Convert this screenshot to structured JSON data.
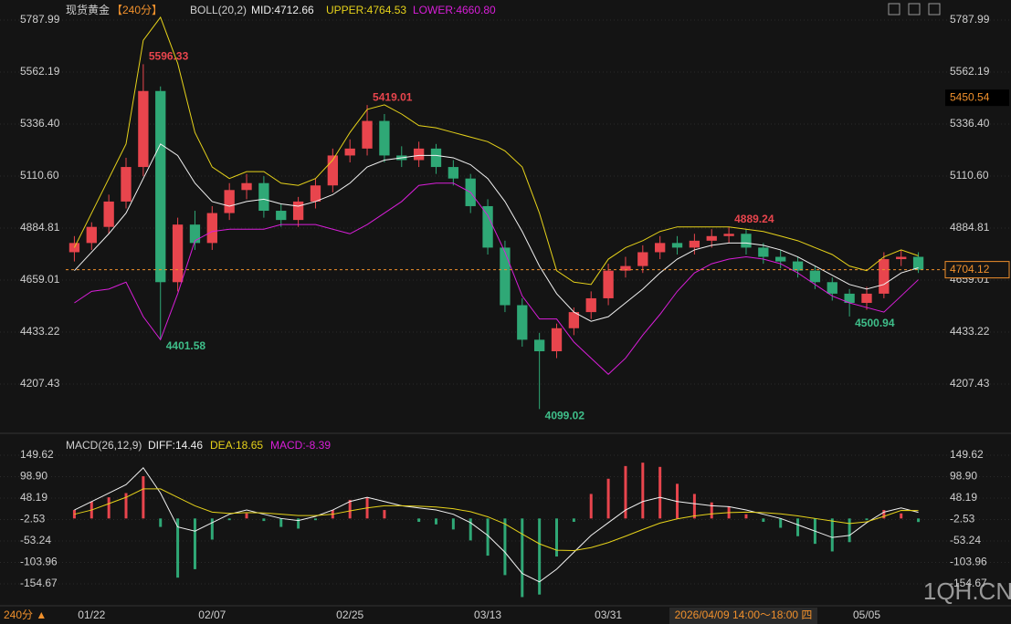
{
  "chart_data": [
    {
      "type": "candlestick",
      "title": "现货黄金",
      "period": "【240分】",
      "indicator": "BOLL(20,2)",
      "mid_label": "MID:4712.66",
      "upper_label": "UPPER:4764.53",
      "lower_label": "LOWER:4660.80",
      "categories": [
        null,
        "01/22",
        null,
        null,
        null,
        null,
        null,
        null,
        "02/07",
        null,
        null,
        null,
        null,
        null,
        null,
        null,
        "02/25",
        null,
        null,
        null,
        null,
        null,
        null,
        null,
        "03/13",
        null,
        null,
        null,
        null,
        null,
        null,
        "03/31",
        null,
        null,
        null,
        null,
        null,
        null,
        null,
        null,
        null,
        null,
        null,
        null,
        null,
        null,
        "05/05",
        null,
        null,
        null
      ],
      "open": [
        4780,
        4820,
        4890,
        5000,
        5150,
        5480,
        4650,
        4900,
        4820,
        4950,
        5050,
        5080,
        4960,
        4920,
        5000,
        5070,
        5200,
        5230,
        5350,
        5200,
        5180,
        5230,
        5150,
        5100,
        4980,
        4800,
        4550,
        4400,
        4350,
        4450,
        4520,
        4580,
        4700,
        4720,
        4780,
        4820,
        4800,
        4830,
        4850,
        4860,
        4800,
        4760,
        4740,
        4700,
        4650,
        4600,
        4560,
        4600,
        4750,
        4760
      ],
      "high": [
        4850,
        4910,
        5030,
        5190,
        5596.33,
        5500,
        4930,
        4960,
        4980,
        5080,
        5120,
        5110,
        4990,
        5020,
        5100,
        5230,
        5270,
        5419.01,
        5380,
        5240,
        5260,
        5250,
        5180,
        5120,
        5010,
        4830,
        4580,
        4430,
        4470,
        4540,
        4610,
        4730,
        4760,
        4810,
        4850,
        4850,
        4860,
        4880,
        4889.24,
        4880,
        4820,
        4790,
        4760,
        4720,
        4670,
        4620,
        4630,
        4780,
        4790,
        4780
      ],
      "low": [
        4740,
        4790,
        4860,
        4970,
        5110,
        4401.58,
        4610,
        4790,
        4790,
        4920,
        5010,
        4930,
        4890,
        4890,
        4970,
        5040,
        5170,
        5200,
        5170,
        5150,
        5150,
        5120,
        5070,
        4950,
        4770,
        4520,
        4370,
        4099.02,
        4320,
        4420,
        4490,
        4550,
        4670,
        4690,
        4750,
        4770,
        4770,
        4800,
        4820,
        4770,
        4730,
        4710,
        4670,
        4620,
        4570,
        4500.94,
        4530,
        4580,
        4720,
        4690
      ],
      "close": [
        4820,
        4890,
        5000,
        5150,
        5480,
        4650,
        4900,
        4820,
        4950,
        5050,
        5080,
        4960,
        4920,
        5000,
        5070,
        5200,
        5230,
        5350,
        5200,
        5180,
        5230,
        5150,
        5100,
        4980,
        4800,
        4550,
        4400,
        4350,
        4450,
        4520,
        4580,
        4700,
        4720,
        4780,
        4820,
        4800,
        4830,
        4850,
        4860,
        4800,
        4760,
        4740,
        4700,
        4650,
        4600,
        4560,
        4600,
        4750,
        4760,
        4704.12
      ],
      "series": [
        {
          "color": "#e6d21a",
          "values": [
            4800,
            4950,
            5100,
            5250,
            5700,
            5800,
            5600,
            5300,
            5150,
            5100,
            5130,
            5130,
            5080,
            5070,
            5100,
            5180,
            5300,
            5400,
            5420,
            5380,
            5330,
            5320,
            5300,
            5280,
            5260,
            5220,
            5150,
            4950,
            4700,
            4650,
            4640,
            4750,
            4800,
            4830,
            4870,
            4890,
            4890,
            4890,
            4890,
            4880,
            4870,
            4850,
            4830,
            4800,
            4770,
            4720,
            4700,
            4760,
            4790,
            4764.53
          ]
        },
        {
          "color": "#f2f2f2",
          "values": [
            4700,
            4780,
            4860,
            4950,
            5100,
            5250,
            5200,
            5080,
            5000,
            4980,
            5000,
            5010,
            4990,
            4980,
            5000,
            5030,
            5080,
            5150,
            5180,
            5190,
            5200,
            5200,
            5190,
            5160,
            5100,
            5000,
            4870,
            4720,
            4600,
            4520,
            4480,
            4500,
            4560,
            4620,
            4690,
            4750,
            4790,
            4810,
            4820,
            4820,
            4810,
            4790,
            4760,
            4720,
            4680,
            4640,
            4620,
            4640,
            4690,
            4712.66
          ]
        },
        {
          "color": "#d91ed9",
          "values": [
            4560,
            4610,
            4620,
            4650,
            4500,
            4400,
            4600,
            4830,
            4870,
            4880,
            4880,
            4880,
            4900,
            4900,
            4900,
            4880,
            4860,
            4900,
            4950,
            5000,
            5070,
            5080,
            5080,
            5040,
            4940,
            4780,
            4590,
            4490,
            4490,
            4390,
            4320,
            4250,
            4320,
            4420,
            4510,
            4610,
            4690,
            4730,
            4750,
            4760,
            4750,
            4730,
            4690,
            4640,
            4590,
            4560,
            4540,
            4520,
            4590,
            4660.8
          ]
        }
      ],
      "up_color": "#e8454d",
      "down_color": "#2fa876",
      "ylim": [
        4013.4,
        5835.5
      ],
      "yticks": [
        {
          "value": 5787.99,
          "label": "5787.99"
        },
        5562.19,
        {
          "value": 5336.4,
          "label": "5336.40"
        },
        {
          "value": 5110.6,
          "label": "5110.60"
        },
        4884.81,
        4659.01,
        4433.22,
        4207.43
      ],
      "crosshair_price": 5450.54,
      "crosshair_date": "2026/04/09 14:00～18:00 四",
      "footer": "240分 ▲",
      "watermark": "1QH.CN"
    },
    {
      "type": "macd",
      "title": "MACD(26,12,9)",
      "diff_label": "DIFF:14.46",
      "dea_label": "DEA:18.65",
      "macd_label": "MACD:-8.39",
      "series": [
        {
          "color": "#f2f2f2",
          "values": [
            20,
            40,
            60,
            80,
            120,
            60,
            -20,
            -30,
            -10,
            10,
            20,
            10,
            0,
            -5,
            5,
            20,
            40,
            50,
            40,
            30,
            25,
            20,
            10,
            -10,
            -40,
            -80,
            -130,
            -150,
            -120,
            -80,
            -40,
            -10,
            20,
            40,
            50,
            40,
            35,
            30,
            28,
            20,
            10,
            0,
            -15,
            -30,
            -45,
            -40,
            -10,
            15,
            25,
            14.46
          ]
        },
        {
          "color": "#e6d21a",
          "values": [
            10,
            20,
            35,
            50,
            70,
            70,
            50,
            30,
            15,
            12,
            14,
            13,
            10,
            7,
            7,
            10,
            18,
            25,
            30,
            30,
            29,
            27,
            23,
            16,
            4,
            -13,
            -37,
            -60,
            -75,
            -76,
            -69,
            -57,
            -42,
            -26,
            -11,
            -1,
            6,
            11,
            14,
            15,
            14,
            11,
            6,
            0,
            -6,
            -12,
            -8,
            5,
            19,
            18.65
          ]
        }
      ],
      "values": [
        20,
        40,
        50,
        60,
        100,
        -20,
        -140,
        -120,
        -50,
        -4,
        12,
        -6,
        -20,
        -24,
        -4,
        20,
        44,
        50,
        20,
        0,
        -8,
        -14,
        -26,
        -52,
        -88,
        -134,
        -186,
        -180,
        -90,
        -8,
        58,
        94,
        124,
        132,
        122,
        82,
        58,
        38,
        28,
        10,
        -8,
        -22,
        -42,
        -60,
        -78,
        -56,
        -4,
        20,
        12,
        -8.39
      ],
      "up_color": "#e8454d",
      "down_color": "#2fa876",
      "ylim": [
        -202.2,
        186.3
      ],
      "yticks": [
        149.62,
        {
          "value": 98.9,
          "label": "98.90"
        },
        48.19,
        -2.53,
        -53.24,
        -103.96,
        -154.67
      ]
    }
  ]
}
